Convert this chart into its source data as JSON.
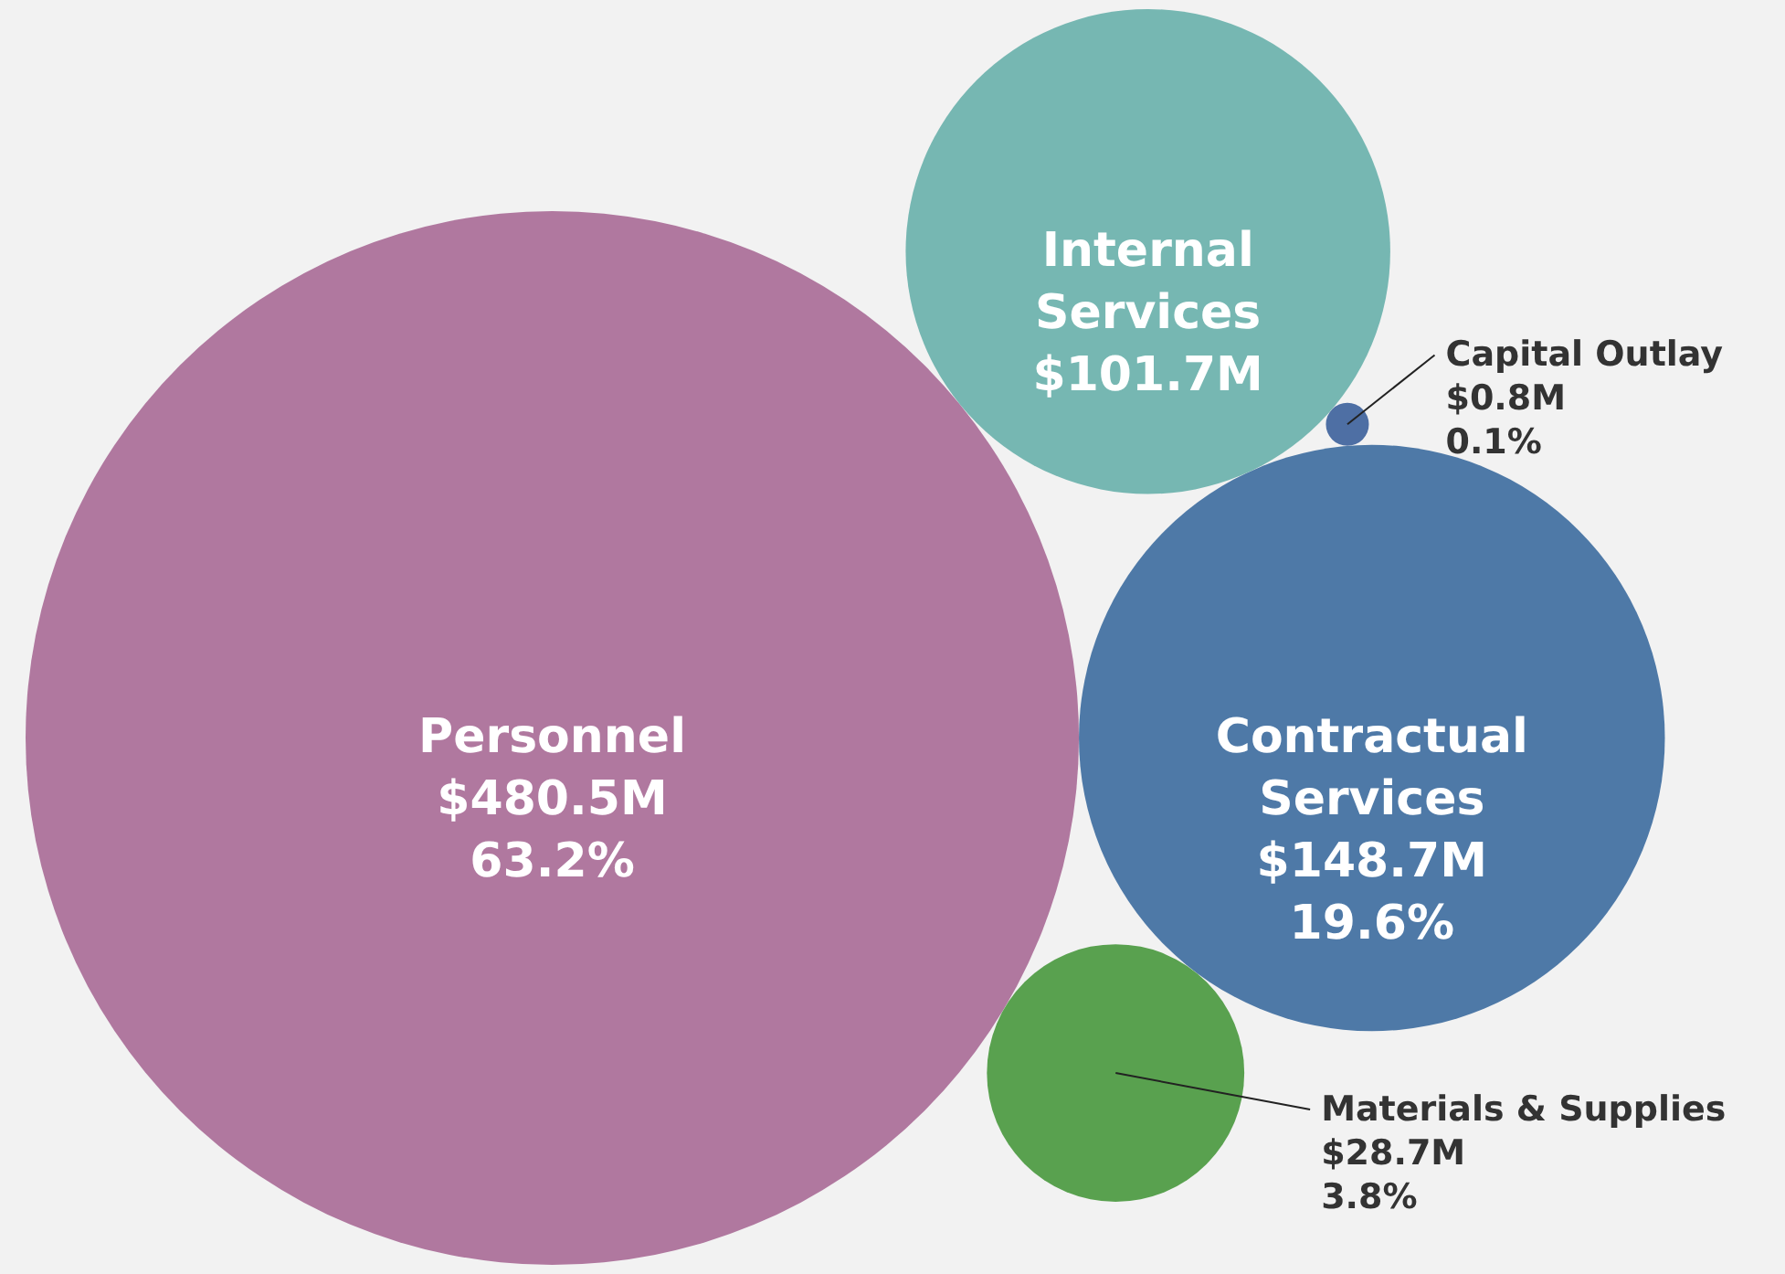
{
  "chart_data": {
    "type": "other",
    "categories": [
      "Personnel",
      "Contractual Services",
      "Internal Services",
      "Materials & Supplies",
      "Capital Outlay"
    ],
    "values": [
      480.5,
      148.7,
      101.7,
      28.7,
      0.8
    ],
    "value_labels": [
      "$480.5M",
      "$148.7M",
      "$101.7M",
      "$28.7M",
      "$0.8M"
    ],
    "annotations": [
      {
        "text": "63.2%",
        "x": "Personnel"
      },
      {
        "text": "19.6%",
        "x": "Contractual Services"
      },
      {
        "text": "3.8%",
        "x": "Materials & Supplies"
      },
      {
        "text": "0.1%",
        "x": "Capital Outlay"
      }
    ],
    "colors": [
      "#b0789f",
      "#4e79a7",
      "#76b7b2",
      "#59a14f",
      "#4e6fa4"
    ]
  }
}
